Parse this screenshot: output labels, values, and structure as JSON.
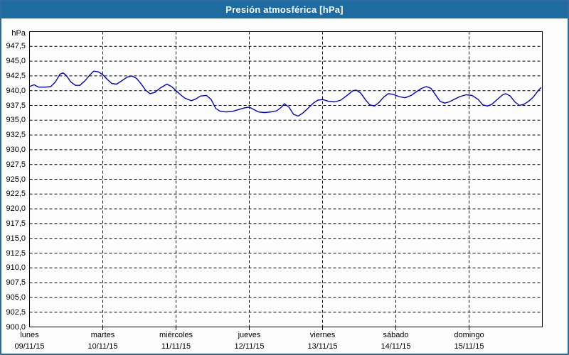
{
  "window": {
    "title": "Presión atmosférica [hPa]"
  },
  "colors": {
    "titlebar_bg": "#1e6ba1",
    "titlebar_text": "#ffffff",
    "frame_border": "#2c6c9f",
    "plot_border": "#000000",
    "grid": "#000000",
    "line": "#0000c0",
    "background": "#fdfdfd"
  },
  "chart_data": {
    "type": "line",
    "title": "Presión atmosférica [hPa]",
    "grid": "dashed",
    "legend": "none",
    "y_axis": {
      "unit": "hPa",
      "min": 900,
      "max": 950,
      "tick_step": 2.5,
      "tick_labels": [
        "947,5",
        "945,0",
        "942,5",
        "940,0",
        "937,5",
        "935,0",
        "932,5",
        "930,0",
        "927,5",
        "925,0",
        "922,5",
        "920,0",
        "917,5",
        "915,0",
        "912,5",
        "910,0",
        "907,5",
        "905,0",
        "902,5",
        "900,0"
      ],
      "tick_values": [
        947.5,
        945.0,
        942.5,
        940.0,
        937.5,
        935.0,
        932.5,
        930.0,
        927.5,
        925.0,
        922.5,
        920.0,
        917.5,
        915.0,
        912.5,
        910.0,
        907.5,
        905.0,
        902.5,
        900.0
      ]
    },
    "x_axis": {
      "total_hours": 168,
      "days": [
        {
          "name": "lunes",
          "date": "09/11/15"
        },
        {
          "name": "martes",
          "date": "10/11/15"
        },
        {
          "name": "miércoles",
          "date": "11/11/15"
        },
        {
          "name": "jueves",
          "date": "12/11/15"
        },
        {
          "name": "viernes",
          "date": "13/11/15"
        },
        {
          "name": "sábado",
          "date": "14/11/15"
        },
        {
          "name": "domingo",
          "date": "15/11/15"
        }
      ]
    },
    "series": [
      {
        "name": "Presión atmosférica",
        "color": "#0000c0",
        "points": [
          [
            0,
            940.7
          ],
          [
            1.5,
            941.0
          ],
          [
            3,
            940.6
          ],
          [
            5,
            940.6
          ],
          [
            7,
            940.7
          ],
          [
            8.5,
            941.5
          ],
          [
            10,
            942.8
          ],
          [
            11,
            943.0
          ],
          [
            12,
            942.6
          ],
          [
            13.5,
            941.5
          ],
          [
            15,
            940.9
          ],
          [
            16.5,
            940.9
          ],
          [
            18,
            941.6
          ],
          [
            19.5,
            942.5
          ],
          [
            21,
            943.3
          ],
          [
            22.5,
            943.2
          ],
          [
            24,
            942.7
          ],
          [
            25.5,
            941.9
          ],
          [
            27,
            941.2
          ],
          [
            28.5,
            941.1
          ],
          [
            30,
            941.6
          ],
          [
            32,
            942.3
          ],
          [
            33.5,
            942.5
          ],
          [
            35,
            942.1
          ],
          [
            36.5,
            941.2
          ],
          [
            38,
            940.1
          ],
          [
            39.5,
            939.5
          ],
          [
            41,
            939.7
          ],
          [
            43,
            940.5
          ],
          [
            45,
            941.1
          ],
          [
            46.5,
            940.7
          ],
          [
            48,
            940.0
          ],
          [
            49.5,
            939.3
          ],
          [
            51,
            938.7
          ],
          [
            53,
            938.3
          ],
          [
            54.5,
            938.6
          ],
          [
            56,
            939.1
          ],
          [
            58,
            939.2
          ],
          [
            59.5,
            938.5
          ],
          [
            61,
            937.0
          ],
          [
            62.5,
            936.5
          ],
          [
            64.5,
            936.4
          ],
          [
            66.5,
            936.5
          ],
          [
            68.5,
            936.8
          ],
          [
            70.5,
            937.1
          ],
          [
            72,
            937.2
          ],
          [
            73.5,
            936.8
          ],
          [
            75,
            936.4
          ],
          [
            77,
            936.3
          ],
          [
            79,
            936.4
          ],
          [
            81,
            936.6
          ],
          [
            82.5,
            937.2
          ],
          [
            83.5,
            937.8
          ],
          [
            85,
            937.2
          ],
          [
            86.5,
            936.0
          ],
          [
            88,
            935.7
          ],
          [
            89.5,
            936.2
          ],
          [
            91,
            936.9
          ],
          [
            93,
            937.9
          ],
          [
            94.5,
            938.4
          ],
          [
            96,
            938.5
          ],
          [
            98,
            938.2
          ],
          [
            100,
            938.1
          ],
          [
            102,
            938.4
          ],
          [
            104,
            939.2
          ],
          [
            106,
            940.0
          ],
          [
            107,
            940.1
          ],
          [
            108.5,
            939.6
          ],
          [
            110,
            938.5
          ],
          [
            111.5,
            937.6
          ],
          [
            113,
            937.4
          ],
          [
            114.5,
            938.0
          ],
          [
            116,
            938.9
          ],
          [
            117.5,
            939.5
          ],
          [
            119,
            939.4
          ],
          [
            121,
            939.0
          ],
          [
            123,
            938.8
          ],
          [
            125,
            939.2
          ],
          [
            127,
            939.9
          ],
          [
            128.5,
            940.4
          ],
          [
            130,
            940.7
          ],
          [
            131.5,
            940.4
          ],
          [
            133,
            939.3
          ],
          [
            134.5,
            938.2
          ],
          [
            136,
            937.9
          ],
          [
            137.5,
            938.1
          ],
          [
            139,
            938.5
          ],
          [
            141,
            939.0
          ],
          [
            143,
            939.3
          ],
          [
            145,
            939.2
          ],
          [
            147,
            938.5
          ],
          [
            148.5,
            937.6
          ],
          [
            150,
            937.4
          ],
          [
            151.5,
            937.7
          ],
          [
            153,
            938.4
          ],
          [
            155,
            939.3
          ],
          [
            156,
            939.5
          ],
          [
            157.5,
            939.1
          ],
          [
            159,
            938.1
          ],
          [
            160.5,
            937.5
          ],
          [
            162,
            937.7
          ],
          [
            163.5,
            938.2
          ],
          [
            165,
            938.9
          ],
          [
            166.5,
            939.9
          ],
          [
            167.5,
            940.5
          ]
        ]
      }
    ]
  }
}
